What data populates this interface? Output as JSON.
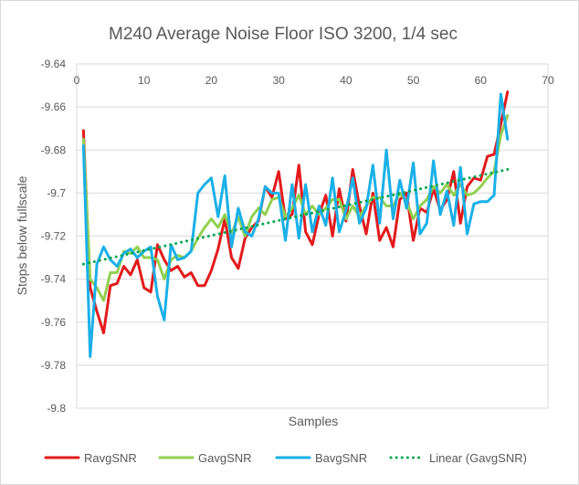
{
  "chart_data": {
    "type": "line",
    "title": "M240 Average Noise Floor ISO 3200, 1/4 sec",
    "xlabel": "Samples",
    "ylabel": "Stops below fullscale",
    "xlim": [
      0,
      70
    ],
    "ylim": [
      -9.8,
      -9.64
    ],
    "x_ticks": [
      "0",
      "10",
      "20",
      "30",
      "40",
      "50",
      "60",
      "70"
    ],
    "y_ticks": [
      "-9.64",
      "-9.66",
      "-9.68",
      "-9.7",
      "-9.72",
      "-9.74",
      "-9.76",
      "-9.78",
      "-9.8"
    ],
    "grid": "horizontal",
    "legend_position": "bottom",
    "series": [
      {
        "name": "RavgSNR",
        "color": "#e31a1c",
        "style": "solid",
        "x": [
          1,
          2,
          3,
          4,
          5,
          6,
          7,
          8,
          9,
          10,
          11,
          12,
          13,
          14,
          15,
          16,
          17,
          18,
          19,
          20,
          21,
          22,
          23,
          24,
          25,
          26,
          27,
          28,
          29,
          30,
          31,
          32,
          33,
          34,
          35,
          36,
          37,
          38,
          39,
          40,
          41,
          42,
          43,
          44,
          45,
          46,
          47,
          48,
          49,
          50,
          51,
          52,
          53,
          54,
          55,
          56,
          57,
          58,
          59,
          60,
          61,
          62,
          63,
          64
        ],
        "values": [
          -9.671,
          -9.744,
          -9.755,
          -9.765,
          -9.743,
          -9.742,
          -9.734,
          -9.738,
          -9.731,
          -9.744,
          -9.746,
          -9.724,
          -9.731,
          -9.736,
          -9.734,
          -9.739,
          -9.737,
          -9.743,
          -9.743,
          -9.736,
          -9.726,
          -9.712,
          -9.73,
          -9.735,
          -9.721,
          -9.716,
          -9.713,
          -9.697,
          -9.702,
          -9.69,
          -9.712,
          -9.71,
          -9.687,
          -9.718,
          -9.724,
          -9.71,
          -9.701,
          -9.72,
          -9.698,
          -9.713,
          -9.689,
          -9.706,
          -9.719,
          -9.7,
          -9.722,
          -9.716,
          -9.725,
          -9.703,
          -9.7,
          -9.722,
          -9.707,
          -9.709,
          -9.698,
          -9.708,
          -9.703,
          -9.69,
          -9.714,
          -9.697,
          -9.693,
          -9.694,
          -9.683,
          -9.682,
          -9.668,
          -9.653
        ]
      },
      {
        "name": "GavgSNR",
        "color": "#92d050",
        "style": "solid",
        "x": [
          1,
          2,
          3,
          4,
          5,
          6,
          7,
          8,
          9,
          10,
          11,
          12,
          13,
          14,
          15,
          16,
          17,
          18,
          19,
          20,
          21,
          22,
          23,
          24,
          25,
          26,
          27,
          28,
          29,
          30,
          31,
          32,
          33,
          34,
          35,
          36,
          37,
          38,
          39,
          40,
          41,
          42,
          43,
          44,
          45,
          46,
          47,
          48,
          49,
          50,
          51,
          52,
          53,
          54,
          55,
          56,
          57,
          58,
          59,
          60,
          61,
          62,
          63,
          64
        ],
        "values": [
          -9.675,
          -9.74,
          -9.744,
          -9.75,
          -9.737,
          -9.737,
          -9.727,
          -9.728,
          -9.725,
          -9.73,
          -9.73,
          -9.731,
          -9.74,
          -9.731,
          -9.729,
          -9.73,
          -9.727,
          -9.721,
          -9.716,
          -9.712,
          -9.716,
          -9.71,
          -9.719,
          -9.711,
          -9.72,
          -9.711,
          -9.707,
          -9.71,
          -9.703,
          -9.702,
          -9.711,
          -9.707,
          -9.701,
          -9.71,
          -9.706,
          -9.71,
          -9.707,
          -9.703,
          -9.703,
          -9.712,
          -9.706,
          -9.711,
          -9.706,
          -9.702,
          -9.702,
          -9.706,
          -9.706,
          -9.7,
          -9.704,
          -9.712,
          -9.706,
          -9.703,
          -9.697,
          -9.7,
          -9.696,
          -9.701,
          -9.696,
          -9.701,
          -9.7,
          -9.697,
          -9.693,
          -9.69,
          -9.673,
          -9.664
        ]
      },
      {
        "name": "BavgSNR",
        "color": "#1ab0e8",
        "style": "solid",
        "x": [
          1,
          2,
          3,
          4,
          5,
          6,
          7,
          8,
          9,
          10,
          11,
          12,
          13,
          14,
          15,
          16,
          17,
          18,
          19,
          20,
          21,
          22,
          23,
          24,
          25,
          26,
          27,
          28,
          29,
          30,
          31,
          32,
          33,
          34,
          35,
          36,
          37,
          38,
          39,
          40,
          41,
          42,
          43,
          44,
          45,
          46,
          47,
          48,
          49,
          50,
          51,
          52,
          53,
          54,
          55,
          56,
          57,
          58,
          59,
          60,
          61,
          62,
          63,
          64
        ],
        "values": [
          -9.678,
          -9.776,
          -9.733,
          -9.725,
          -9.731,
          -9.734,
          -9.728,
          -9.726,
          -9.73,
          -9.727,
          -9.725,
          -9.748,
          -9.759,
          -9.724,
          -9.731,
          -9.73,
          -9.727,
          -9.7,
          -9.696,
          -9.693,
          -9.711,
          -9.692,
          -9.725,
          -9.707,
          -9.718,
          -9.72,
          -9.712,
          -9.697,
          -9.7,
          -9.7,
          -9.722,
          -9.696,
          -9.721,
          -9.696,
          -9.718,
          -9.706,
          -9.715,
          -9.693,
          -9.718,
          -9.708,
          -9.693,
          -9.714,
          -9.707,
          -9.687,
          -9.714,
          -9.68,
          -9.712,
          -9.694,
          -9.707,
          -9.686,
          -9.719,
          -9.714,
          -9.685,
          -9.71,
          -9.699,
          -9.715,
          -9.688,
          -9.719,
          -9.705,
          -9.704,
          -9.704,
          -9.701,
          -9.654,
          -9.675
        ]
      },
      {
        "name": "Linear (GavgSNR)",
        "color": "#00a651",
        "style": "dotted",
        "x": [
          1,
          64
        ],
        "values": [
          -9.733,
          -9.689
        ]
      }
    ]
  }
}
